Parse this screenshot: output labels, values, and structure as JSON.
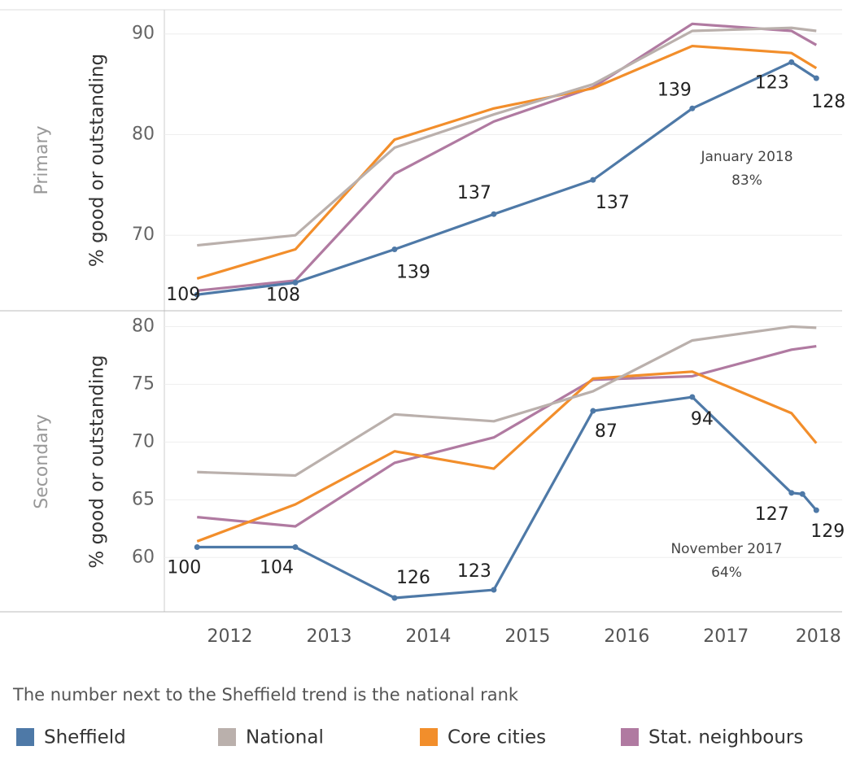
{
  "chart_data": [
    {
      "type": "line",
      "panel_label": "Primary",
      "y_label": "% good or outstanding",
      "xlim": [
        2011.84,
        2018.67
      ],
      "ylim": [
        62.5,
        92.4
      ],
      "yticks": [
        70,
        80,
        90
      ],
      "grid": true,
      "annotation": [
        "January 2018",
        "83%"
      ],
      "series": [
        {
          "name": "Sheffield",
          "color": "#4e79a7",
          "markers": true,
          "x": [
            2012.17,
            2013.16,
            2014.16,
            2015.16,
            2016.16,
            2017.16,
            2018.16,
            2018.41
          ],
          "values": [
            64.1,
            65.3,
            68.6,
            72.1,
            75.5,
            82.6,
            87.2,
            85.6
          ],
          "ranks": [
            "109",
            "108",
            "139",
            "137",
            "137",
            "139",
            "123",
            "128"
          ]
        },
        {
          "name": "National",
          "color": "#bab0ac",
          "x": [
            2012.17,
            2013.16,
            2014.16,
            2015.16,
            2016.16,
            2017.16,
            2018.16,
            2018.41
          ],
          "values": [
            69.0,
            70.0,
            78.7,
            82.0,
            85.0,
            90.3,
            90.6,
            90.3
          ]
        },
        {
          "name": "Core cities",
          "color": "#f28e2b",
          "x": [
            2012.17,
            2013.16,
            2014.16,
            2015.16,
            2016.16,
            2017.16,
            2018.16,
            2018.41
          ],
          "values": [
            65.7,
            68.6,
            79.5,
            82.6,
            84.6,
            88.8,
            88.1,
            86.6
          ]
        },
        {
          "name": "Stat. neighbours",
          "color": "#b07aa1",
          "x": [
            2012.17,
            2013.16,
            2014.16,
            2015.16,
            2016.16,
            2017.16,
            2018.16,
            2018.41
          ],
          "values": [
            64.5,
            65.5,
            76.1,
            81.3,
            84.7,
            91.0,
            90.3,
            88.9
          ]
        }
      ]
    },
    {
      "type": "line",
      "panel_label": "Secondary",
      "y_label": "% good or outstanding",
      "xlim": [
        2011.84,
        2018.67
      ],
      "ylim": [
        55.3,
        81.3
      ],
      "yticks": [
        60,
        65,
        70,
        75,
        80
      ],
      "grid": true,
      "xticks": [
        {
          "value": 2012.5,
          "label": "2012"
        },
        {
          "value": 2013.5,
          "label": "2013"
        },
        {
          "value": 2014.5,
          "label": "2014"
        },
        {
          "value": 2015.5,
          "label": "2015"
        },
        {
          "value": 2016.5,
          "label": "2016"
        },
        {
          "value": 2017.5,
          "label": "2017"
        },
        {
          "value": 2018.43,
          "label": "2018"
        }
      ],
      "annotation": [
        "November 2017",
        "64%"
      ],
      "series": [
        {
          "name": "Sheffield",
          "color": "#4e79a7",
          "markers": true,
          "x": [
            2012.17,
            2013.16,
            2014.16,
            2015.16,
            2016.16,
            2017.16,
            2018.16,
            2018.27,
            2018.41
          ],
          "values": [
            60.9,
            60.9,
            56.5,
            57.2,
            72.7,
            73.9,
            65.6,
            65.5,
            64.1
          ],
          "ranks": [
            "100",
            "104",
            "126",
            "123",
            "87",
            "94",
            "127",
            null,
            "129"
          ]
        },
        {
          "name": "National",
          "color": "#bab0ac",
          "x": [
            2012.17,
            2013.16,
            2014.16,
            2015.16,
            2016.16,
            2017.16,
            2018.16,
            2018.41
          ],
          "values": [
            67.4,
            67.1,
            72.4,
            71.8,
            74.4,
            78.8,
            80.0,
            79.9
          ]
        },
        {
          "name": "Core cities",
          "color": "#f28e2b",
          "x": [
            2012.17,
            2013.16,
            2014.16,
            2015.16,
            2016.16,
            2017.16,
            2018.16,
            2018.41
          ],
          "values": [
            61.4,
            64.6,
            69.2,
            67.7,
            75.5,
            76.1,
            72.5,
            69.9
          ]
        },
        {
          "name": "Stat. neighbours",
          "color": "#b07aa1",
          "x": [
            2012.17,
            2013.16,
            2014.16,
            2015.16,
            2016.16,
            2017.16,
            2018.16,
            2018.41
          ],
          "values": [
            63.5,
            62.7,
            68.2,
            70.4,
            75.4,
            75.7,
            78.0,
            78.3
          ]
        }
      ]
    }
  ],
  "note": "The number next to the Sheffield trend is the national rank"
}
